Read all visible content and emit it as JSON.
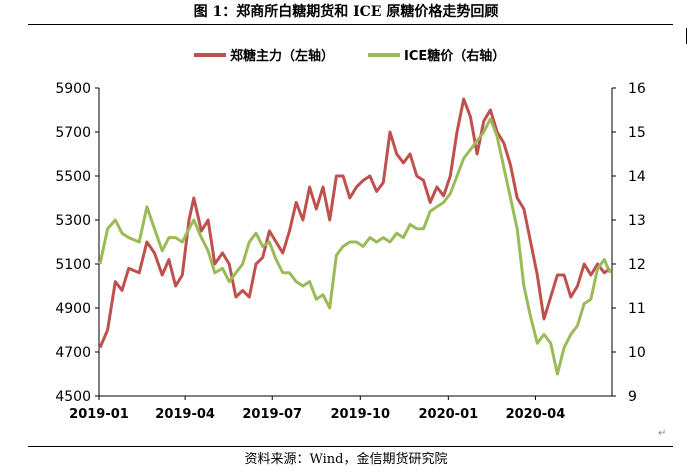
{
  "figure": {
    "title": "图 1：郑商所白糖期货和 ICE 原糖价格走势回顾",
    "source": "资料来源：Wind，金信期货研究院"
  },
  "chart_data": {
    "type": "line",
    "xlabel": "",
    "ylabel_left": "",
    "ylabel_right": "",
    "x_ticks": [
      "2019-01",
      "2019-04",
      "2019-07",
      "2019-10",
      "2020-01",
      "2020-04"
    ],
    "y_left": {
      "min": 4500,
      "max": 5900,
      "ticks": [
        4500,
        4700,
        4900,
        5100,
        5300,
        5500,
        5700,
        5900
      ]
    },
    "y_right": {
      "min": 9,
      "max": 16,
      "ticks": [
        9,
        10,
        11,
        12,
        13,
        14,
        15,
        16
      ]
    },
    "grid": false,
    "legend": "top-center",
    "series": [
      {
        "name": "郑糖主力（左轴）",
        "axis": "left",
        "color": "#c0504d",
        "points": [
          [
            "2019-01-02",
            4720
          ],
          [
            "2019-01-10",
            4800
          ],
          [
            "2019-01-18",
            5020
          ],
          [
            "2019-01-25",
            4980
          ],
          [
            "2019-02-01",
            5080
          ],
          [
            "2019-02-12",
            5060
          ],
          [
            "2019-02-20",
            5200
          ],
          [
            "2019-02-28",
            5150
          ],
          [
            "2019-03-08",
            5050
          ],
          [
            "2019-03-15",
            5120
          ],
          [
            "2019-03-22",
            5000
          ],
          [
            "2019-03-29",
            5050
          ],
          [
            "2019-04-05",
            5300
          ],
          [
            "2019-04-10",
            5400
          ],
          [
            "2019-04-18",
            5250
          ],
          [
            "2019-04-25",
            5300
          ],
          [
            "2019-05-02",
            5100
          ],
          [
            "2019-05-10",
            5150
          ],
          [
            "2019-05-17",
            5100
          ],
          [
            "2019-05-24",
            4950
          ],
          [
            "2019-05-31",
            4980
          ],
          [
            "2019-06-07",
            4950
          ],
          [
            "2019-06-14",
            5100
          ],
          [
            "2019-06-21",
            5130
          ],
          [
            "2019-06-28",
            5250
          ],
          [
            "2019-07-05",
            5200
          ],
          [
            "2019-07-12",
            5150
          ],
          [
            "2019-07-19",
            5250
          ],
          [
            "2019-07-26",
            5380
          ],
          [
            "2019-08-02",
            5300
          ],
          [
            "2019-08-09",
            5450
          ],
          [
            "2019-08-16",
            5350
          ],
          [
            "2019-08-23",
            5450
          ],
          [
            "2019-08-30",
            5300
          ],
          [
            "2019-09-06",
            5500
          ],
          [
            "2019-09-13",
            5500
          ],
          [
            "2019-09-20",
            5400
          ],
          [
            "2019-09-27",
            5450
          ],
          [
            "2019-10-04",
            5480
          ],
          [
            "2019-10-11",
            5500
          ],
          [
            "2019-10-18",
            5430
          ],
          [
            "2019-10-25",
            5470
          ],
          [
            "2019-11-01",
            5700
          ],
          [
            "2019-11-08",
            5600
          ],
          [
            "2019-11-15",
            5560
          ],
          [
            "2019-11-22",
            5600
          ],
          [
            "2019-11-29",
            5500
          ],
          [
            "2019-12-06",
            5480
          ],
          [
            "2019-12-13",
            5380
          ],
          [
            "2019-12-20",
            5450
          ],
          [
            "2019-12-27",
            5410
          ],
          [
            "2020-01-03",
            5500
          ],
          [
            "2020-01-10",
            5700
          ],
          [
            "2020-01-17",
            5850
          ],
          [
            "2020-01-24",
            5770
          ],
          [
            "2020-01-31",
            5600
          ],
          [
            "2020-02-07",
            5750
          ],
          [
            "2020-02-14",
            5800
          ],
          [
            "2020-02-21",
            5700
          ],
          [
            "2020-02-28",
            5650
          ],
          [
            "2020-03-06",
            5550
          ],
          [
            "2020-03-13",
            5400
          ],
          [
            "2020-03-20",
            5350
          ],
          [
            "2020-03-27",
            5200
          ],
          [
            "2020-04-03",
            5050
          ],
          [
            "2020-04-10",
            4850
          ],
          [
            "2020-04-17",
            4950
          ],
          [
            "2020-04-24",
            5050
          ],
          [
            "2020-05-01",
            5050
          ],
          [
            "2020-05-08",
            4950
          ],
          [
            "2020-05-15",
            5000
          ],
          [
            "2020-05-22",
            5100
          ],
          [
            "2020-05-29",
            5050
          ],
          [
            "2020-06-05",
            5100
          ],
          [
            "2020-06-12",
            5060
          ],
          [
            "2020-06-18",
            5080
          ]
        ]
      },
      {
        "name": "ICE糖价（右轴）",
        "axis": "right",
        "color": "#9bbb59",
        "points": [
          [
            "2019-01-02",
            12.0
          ],
          [
            "2019-01-10",
            12.8
          ],
          [
            "2019-01-18",
            13.0
          ],
          [
            "2019-01-25",
            12.7
          ],
          [
            "2019-02-01",
            12.6
          ],
          [
            "2019-02-12",
            12.5
          ],
          [
            "2019-02-20",
            13.3
          ],
          [
            "2019-02-28",
            12.8
          ],
          [
            "2019-03-08",
            12.3
          ],
          [
            "2019-03-15",
            12.6
          ],
          [
            "2019-03-22",
            12.6
          ],
          [
            "2019-03-29",
            12.5
          ],
          [
            "2019-04-05",
            12.8
          ],
          [
            "2019-04-10",
            13.0
          ],
          [
            "2019-04-18",
            12.6
          ],
          [
            "2019-04-25",
            12.3
          ],
          [
            "2019-05-02",
            11.8
          ],
          [
            "2019-05-10",
            11.9
          ],
          [
            "2019-05-17",
            11.6
          ],
          [
            "2019-05-24",
            11.8
          ],
          [
            "2019-05-31",
            12.0
          ],
          [
            "2019-06-07",
            12.5
          ],
          [
            "2019-06-14",
            12.7
          ],
          [
            "2019-06-21",
            12.4
          ],
          [
            "2019-06-28",
            12.5
          ],
          [
            "2019-07-05",
            12.1
          ],
          [
            "2019-07-12",
            11.8
          ],
          [
            "2019-07-19",
            11.8
          ],
          [
            "2019-07-26",
            11.6
          ],
          [
            "2019-08-02",
            11.5
          ],
          [
            "2019-08-09",
            11.6
          ],
          [
            "2019-08-16",
            11.2
          ],
          [
            "2019-08-23",
            11.3
          ],
          [
            "2019-08-30",
            11.0
          ],
          [
            "2019-09-06",
            12.2
          ],
          [
            "2019-09-13",
            12.4
          ],
          [
            "2019-09-20",
            12.5
          ],
          [
            "2019-09-27",
            12.5
          ],
          [
            "2019-10-04",
            12.4
          ],
          [
            "2019-10-11",
            12.6
          ],
          [
            "2019-10-18",
            12.5
          ],
          [
            "2019-10-25",
            12.6
          ],
          [
            "2019-11-01",
            12.5
          ],
          [
            "2019-11-08",
            12.7
          ],
          [
            "2019-11-15",
            12.6
          ],
          [
            "2019-11-22",
            12.9
          ],
          [
            "2019-11-29",
            12.8
          ],
          [
            "2019-12-06",
            12.8
          ],
          [
            "2019-12-13",
            13.2
          ],
          [
            "2019-12-20",
            13.3
          ],
          [
            "2019-12-27",
            13.4
          ],
          [
            "2020-01-03",
            13.6
          ],
          [
            "2020-01-10",
            14.0
          ],
          [
            "2020-01-17",
            14.4
          ],
          [
            "2020-01-24",
            14.6
          ],
          [
            "2020-01-31",
            14.8
          ],
          [
            "2020-02-07",
            15.0
          ],
          [
            "2020-02-14",
            15.3
          ],
          [
            "2020-02-21",
            14.9
          ],
          [
            "2020-02-28",
            14.2
          ],
          [
            "2020-03-06",
            13.5
          ],
          [
            "2020-03-13",
            12.8
          ],
          [
            "2020-03-20",
            11.5
          ],
          [
            "2020-03-27",
            10.8
          ],
          [
            "2020-04-03",
            10.2
          ],
          [
            "2020-04-10",
            10.4
          ],
          [
            "2020-04-17",
            10.2
          ],
          [
            "2020-04-24",
            9.5
          ],
          [
            "2020-05-01",
            10.1
          ],
          [
            "2020-05-08",
            10.4
          ],
          [
            "2020-05-15",
            10.6
          ],
          [
            "2020-05-22",
            11.1
          ],
          [
            "2020-05-29",
            11.2
          ],
          [
            "2020-06-05",
            11.9
          ],
          [
            "2020-06-12",
            12.1
          ],
          [
            "2020-06-18",
            11.8
          ]
        ]
      }
    ]
  }
}
